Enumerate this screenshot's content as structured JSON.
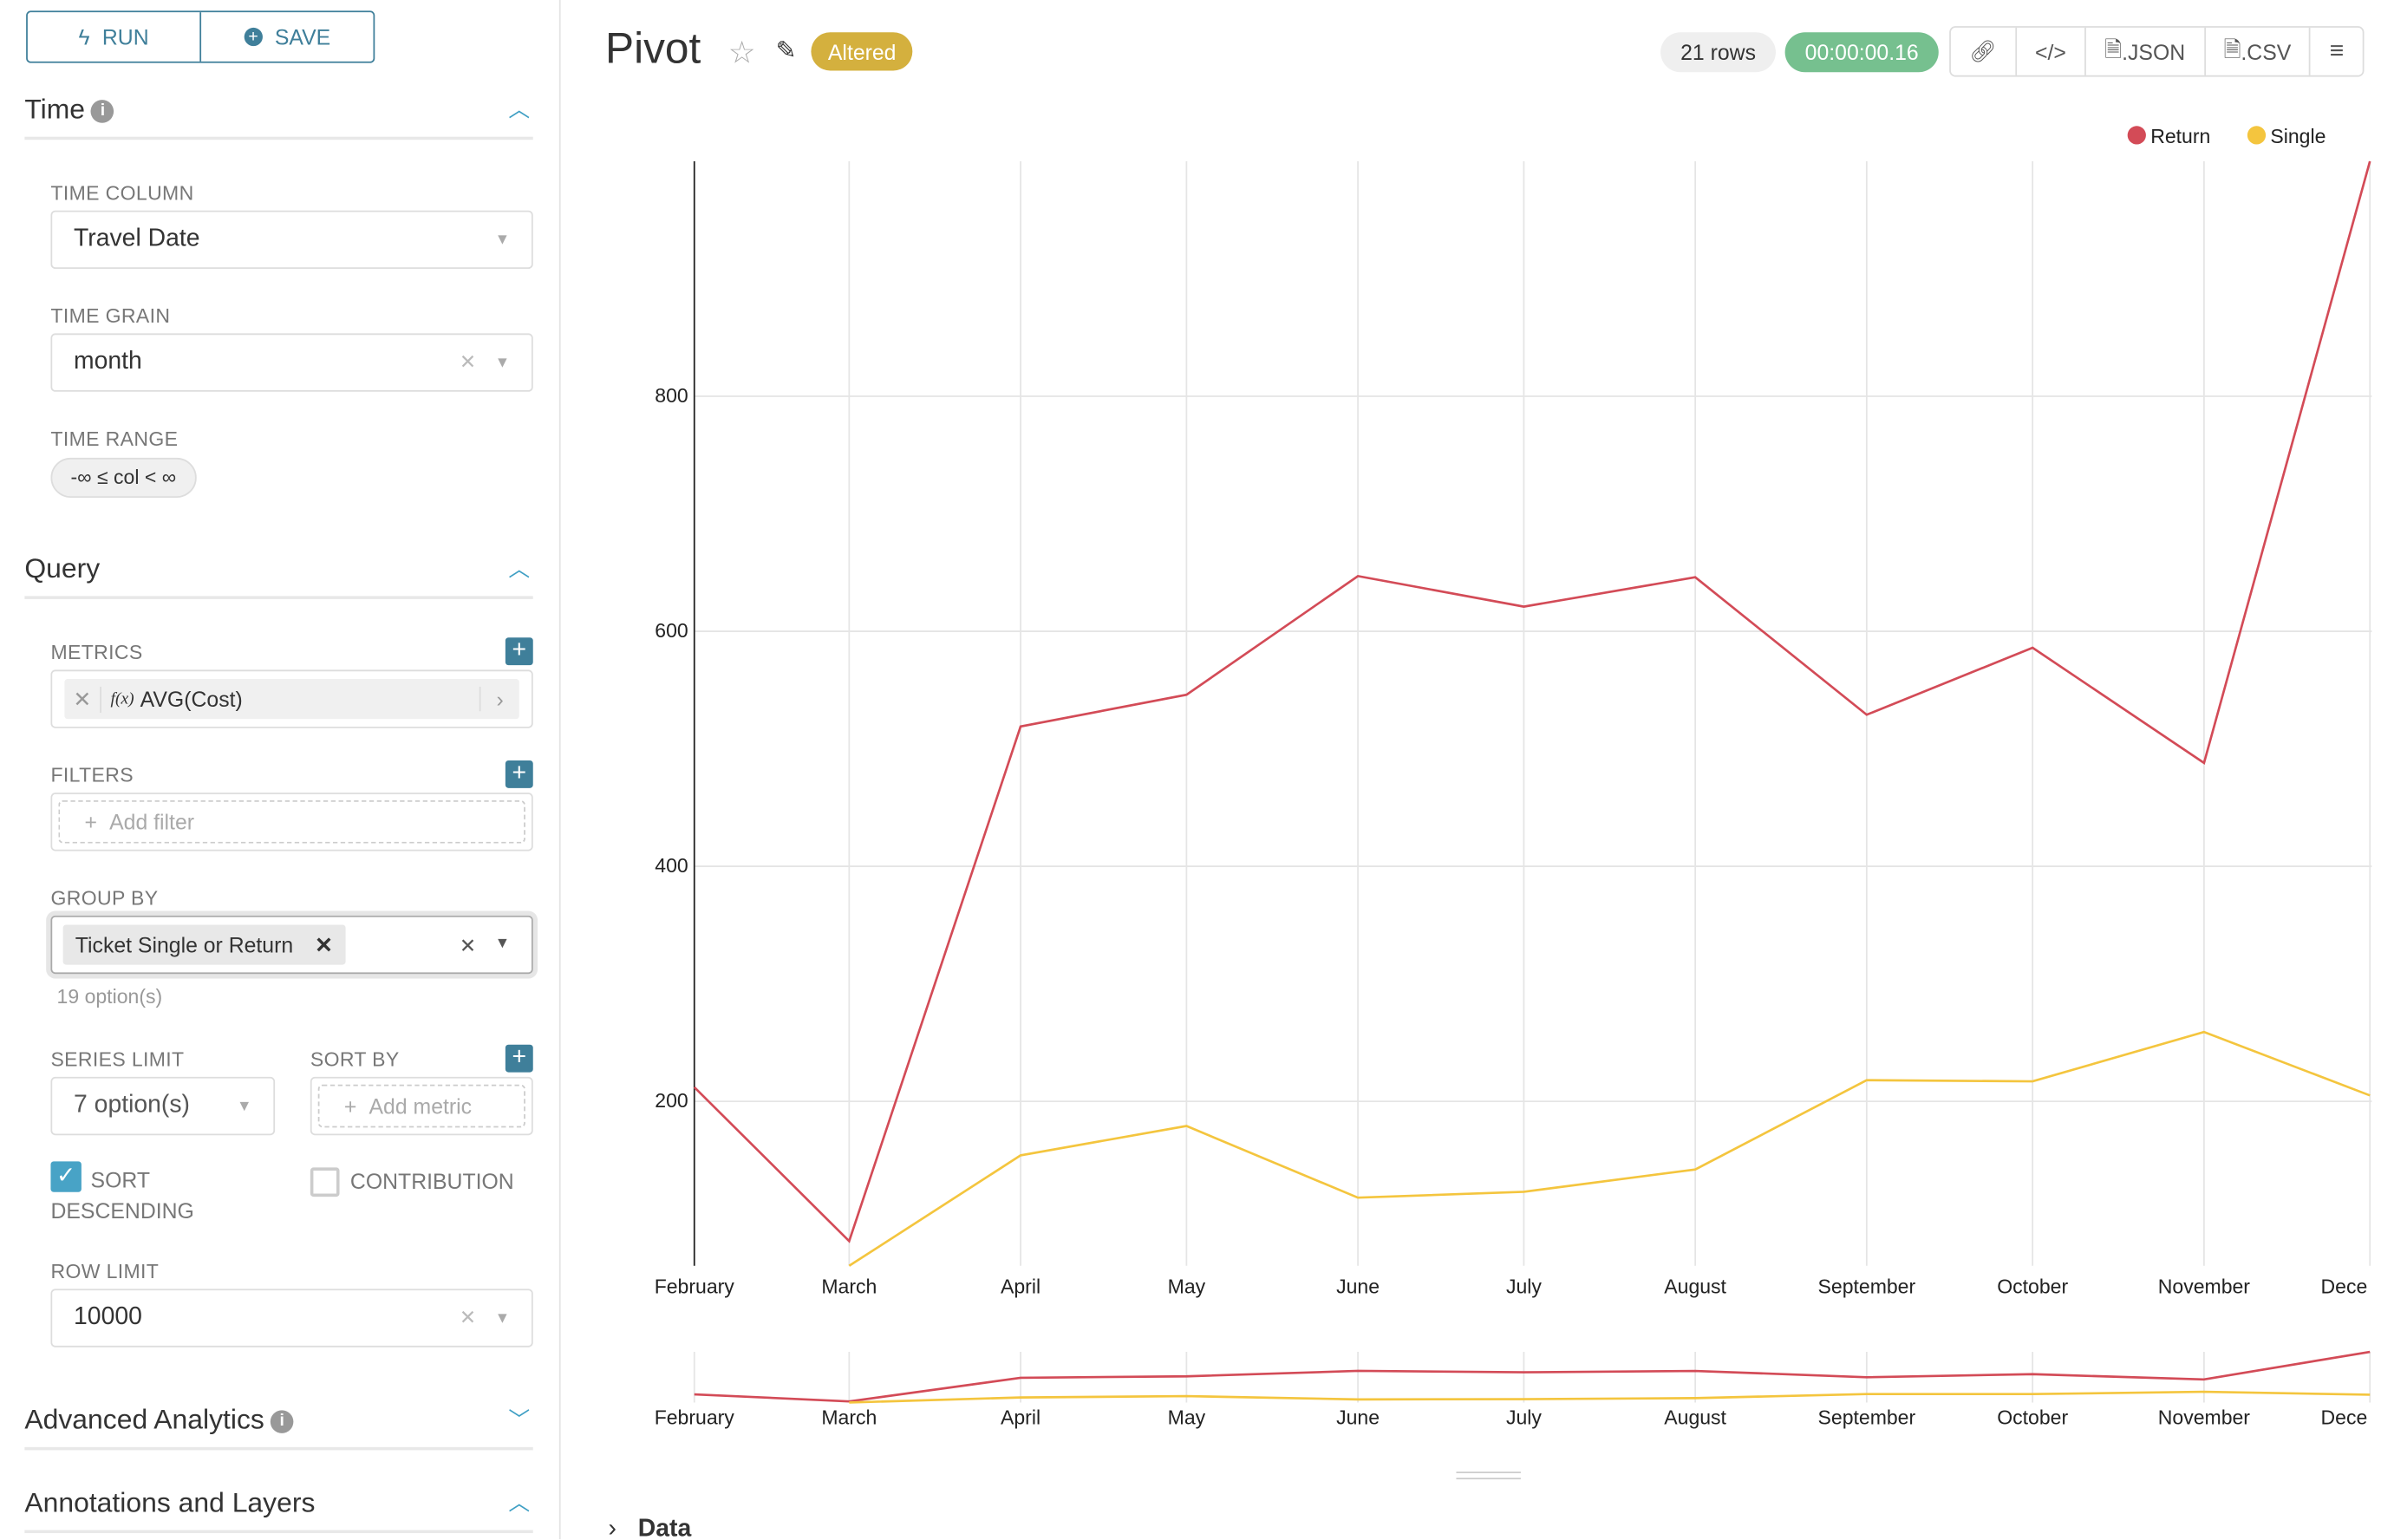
{
  "sidebar": {
    "run_label": "RUN",
    "save_label": "SAVE",
    "time_section": "Time",
    "query_section": "Query",
    "time_column_label": "TIME COLUMN",
    "time_column_value": "Travel Date",
    "time_grain_label": "TIME GRAIN",
    "time_grain_value": "month",
    "time_range_label": "TIME RANGE",
    "time_range_value": "-∞ ≤ col < ∞",
    "metrics_label": "METRICS",
    "metric_fx": "f(x)",
    "metric_value": "AVG(Cost)",
    "filters_label": "FILTERS",
    "filters_placeholder": "Add filter",
    "group_by_label": "GROUP BY",
    "group_by_tag": "Ticket Single or Return",
    "group_by_hint": "19 option(s)",
    "series_limit_label": "SERIES LIMIT",
    "series_limit_value": "7 option(s)",
    "sort_by_label": "SORT BY",
    "sort_by_placeholder": "Add metric",
    "sort_desc_label": "SORT DESCENDING",
    "sort_desc_checked": true,
    "contribution_label": "CONTRIBUTION",
    "contribution_checked": false,
    "row_limit_label": "ROW LIMIT",
    "row_limit_value": "10000",
    "advanced_section": "Advanced Analytics",
    "annotations_section": "Annotations and Layers"
  },
  "header": {
    "title": "Pivot",
    "status_badge": "Altered",
    "rows": "21 rows",
    "duration": "00:00:00.16",
    "json_label": ".JSON",
    "csv_label": ".CSV"
  },
  "colors": {
    "accent": "#3f7f9a",
    "altered": "#d4b03e",
    "success": "#76c08f",
    "return": "#d34b57",
    "single": "#f4c53e"
  },
  "data_toggle": "Data",
  "chart_data": {
    "type": "line",
    "categories": [
      "February",
      "March",
      "April",
      "May",
      "June",
      "July",
      "August",
      "September",
      "October",
      "November",
      "December"
    ],
    "tick_labels": [
      "February",
      "March",
      "April",
      "May",
      "June",
      "July",
      "August",
      "September",
      "October",
      "November",
      "Dece"
    ],
    "yticks": [
      200,
      400,
      600,
      800
    ],
    "ylim": [
      60,
      1000
    ],
    "grid": true,
    "legend_position": "top-right",
    "series": [
      {
        "name": "Return",
        "color": "#d34b57",
        "values": [
          212,
          81,
          519,
          546,
          647,
          621,
          646,
          529,
          586,
          488,
          1000
        ]
      },
      {
        "name": "Single",
        "color": "#f4c53e",
        "values": [
          null,
          60,
          154,
          179,
          118,
          123,
          142,
          218,
          217,
          259,
          205
        ]
      }
    ]
  }
}
